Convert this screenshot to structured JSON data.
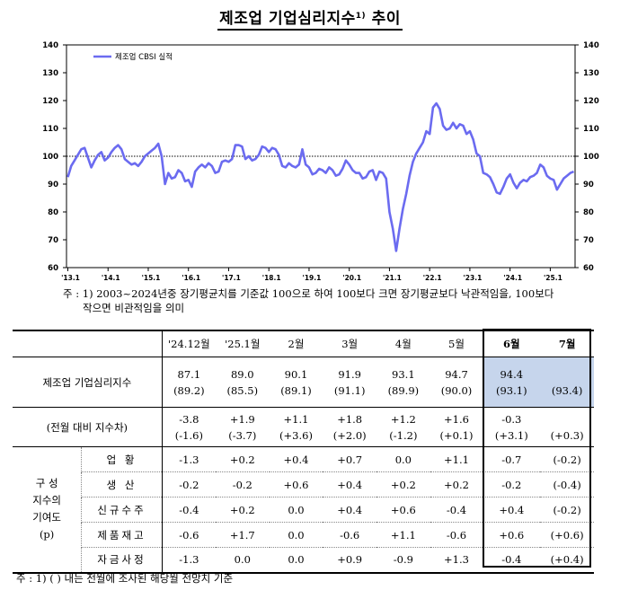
{
  "title": {
    "main": "제조업 기업심리지수",
    "sup": "1)",
    "suffix": " 추이"
  },
  "colors": {
    "series": "#6b6bf0",
    "baseline": "#000000",
    "highlight": "#c6d5ec"
  },
  "chart_data": {
    "type": "line",
    "legend": "제조업 CBSI 실적",
    "legend_position": "top-left",
    "ylim": [
      60,
      140
    ],
    "yticks": [
      60,
      70,
      80,
      90,
      100,
      110,
      120,
      130,
      140
    ],
    "reference_line": 100,
    "x_tick_labels": [
      "'13.1",
      "'14.1",
      "'15.1",
      "'16.1",
      "'17.1",
      "'18.1",
      "'19.1",
      "'20.1",
      "'21.1",
      "'22.1",
      "'23.1",
      "'24.1",
      "'25.1"
    ],
    "x_start": "2013-01",
    "series": [
      {
        "name": "제조업 CBSI 실적",
        "values": [
          92.5,
          96.5,
          98.5,
          100.5,
          102.5,
          103,
          99.5,
          96,
          98.5,
          100.5,
          101.5,
          98.5,
          99.5,
          101.5,
          103,
          104,
          102.5,
          99,
          98,
          97,
          97.5,
          96.5,
          98,
          100,
          101,
          102,
          103,
          104.5,
          100,
          90,
          94,
          92,
          92.5,
          95,
          94,
          91,
          91.5,
          89,
          94.5,
          96,
          97,
          96,
          97.5,
          96.5,
          94,
          94.5,
          98,
          98.5,
          98,
          99,
          104,
          104,
          103.5,
          99,
          100,
          98.5,
          99,
          100.5,
          103.5,
          103,
          101.5,
          103,
          102.5,
          100.5,
          96.5,
          96,
          97.5,
          96.5,
          96,
          97,
          102.5,
          97,
          96,
          93.5,
          94,
          95.5,
          95,
          94,
          96,
          95,
          93,
          93.5,
          95.5,
          98.5,
          97,
          95,
          94,
          94,
          92,
          92.5,
          94.5,
          95,
          91.5,
          94.5,
          94,
          92,
          80,
          74,
          66,
          74,
          81,
          86.5,
          93,
          98,
          101,
          103,
          105,
          109,
          108,
          117.5,
          119,
          117,
          111,
          109.5,
          110,
          112,
          110,
          111.5,
          111,
          108,
          109,
          106,
          101,
          100,
          94,
          93.5,
          92.5,
          90,
          87,
          86.5,
          89,
          92,
          93.5,
          90.5,
          88.5,
          90.5,
          91.5,
          91,
          92.5,
          93,
          94,
          97,
          96,
          93,
          92,
          91.5,
          88,
          90,
          92,
          93,
          94,
          94.5
        ]
      }
    ],
    "xlabel": "",
    "ylabel": ""
  },
  "note1": {
    "line1": "주 : 1)  2003~2024년중 장기평균치를 기준값 100으로 하여 100보다 크면 장기평균보다 낙관적임을, 100보다",
    "line2": "작으면 비관적임을 의미"
  },
  "table": {
    "headers": [
      "'24.12월",
      "'25.1월",
      "2월",
      "3월",
      "4월",
      "5월",
      "6월",
      "7월"
    ],
    "cbsi": {
      "label": "제조업 기업심리지수",
      "values": [
        "87.1",
        "89.0",
        "90.1",
        "91.9",
        "93.1",
        "94.7",
        "94.4",
        ""
      ],
      "forecasts": [
        "(89.2)",
        "(85.5)",
        "(89.1)",
        "(91.1)",
        "(89.9)",
        "(90.0)",
        "(93.1)",
        "(93.4)"
      ]
    },
    "change": {
      "label": "(전월 대비 지수차)",
      "values": [
        "-3.8",
        "+1.9",
        "+1.1",
        "+1.8",
        "+1.2",
        "+1.6",
        "-0.3",
        ""
      ],
      "forecasts": [
        "(-1.6)",
        "(-3.7)",
        "(+3.6)",
        "(+2.0)",
        "(-1.2)",
        "(+0.1)",
        "(+3.1)",
        "(+0.3)"
      ]
    },
    "group_label": [
      "구  성",
      "지수의",
      "기여도",
      "(p)"
    ],
    "components": [
      {
        "label": "업    황",
        "values": [
          "-1.3",
          "+0.2",
          "+0.4",
          "+0.7",
          "0.0",
          "+1.1",
          "-0.7",
          "(-0.2)"
        ]
      },
      {
        "label": "생    산",
        "values": [
          "-0.2",
          "-0.2",
          "+0.6",
          "+0.4",
          "+0.2",
          "+0.2",
          "-0.2",
          "(-0.4)"
        ]
      },
      {
        "label": "신규수주",
        "values": [
          "-0.4",
          "+0.2",
          "0.0",
          "+0.4",
          "+0.6",
          "-0.4",
          "+0.4",
          "(-0.2)"
        ]
      },
      {
        "label": "제품재고",
        "values": [
          "-0.6",
          "+1.7",
          "0.0",
          "-0.6",
          "+1.1",
          "-0.6",
          "+0.6",
          "(+0.6)"
        ]
      },
      {
        "label": "자금사정",
        "values": [
          "-1.3",
          "0.0",
          "0.0",
          "+0.9",
          "-0.9",
          "+1.3",
          "-0.4",
          "(+0.4)"
        ]
      }
    ]
  },
  "note2": "주 : 1) (   ) 내는 전월에 조사된 해당월 전망치 기준"
}
